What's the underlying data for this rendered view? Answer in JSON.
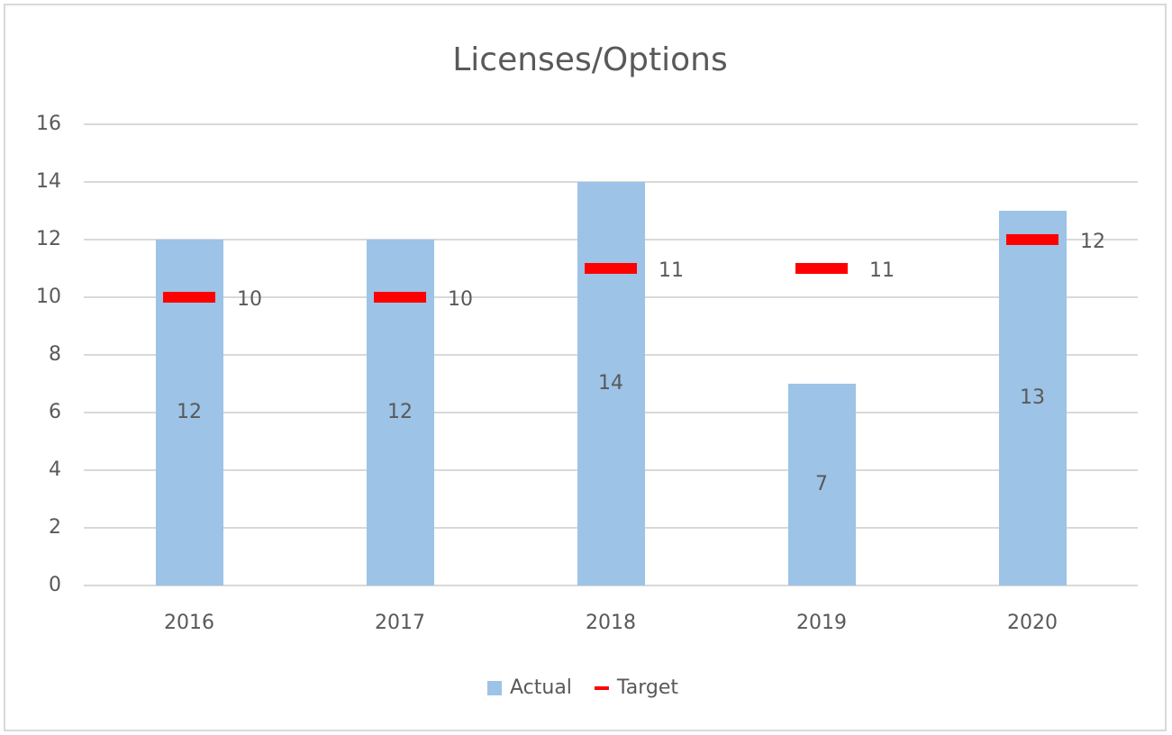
{
  "chart_data": {
    "type": "bar",
    "title": "Licenses/Options",
    "categories": [
      "2016",
      "2017",
      "2018",
      "2019",
      "2020"
    ],
    "series": [
      {
        "name": "Actual",
        "type": "bar",
        "color": "#9dc3e6",
        "values": [
          12,
          12,
          14,
          7,
          13
        ]
      },
      {
        "name": "Target",
        "type": "marker",
        "color": "#ff0000",
        "values": [
          10,
          10,
          11,
          11,
          12
        ]
      }
    ],
    "ylim": [
      0,
      16
    ],
    "yticks": [
      0,
      2,
      4,
      6,
      8,
      10,
      12,
      14,
      16
    ],
    "grid": true,
    "legend": "bottom"
  }
}
